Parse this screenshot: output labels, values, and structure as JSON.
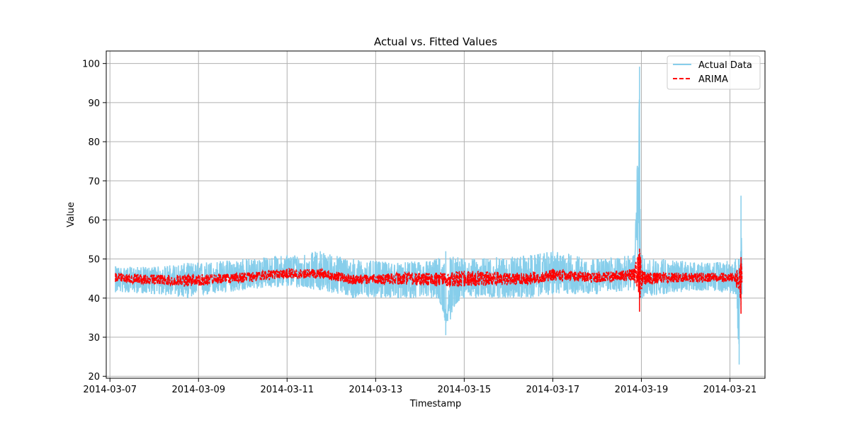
{
  "chart_data": {
    "type": "line",
    "title": "Actual vs. Fitted Values",
    "xlabel": "Timestamp",
    "ylabel": "Value",
    "xlim": [
      "2014-03-06T22:00",
      "2014-03-21T19:00"
    ],
    "ylim": [
      19.5,
      103.2
    ],
    "grid": true,
    "legend_position": "top-right",
    "x_ticks": [
      "2014-03-07",
      "2014-03-09",
      "2014-03-11",
      "2014-03-13",
      "2014-03-15",
      "2014-03-17",
      "2014-03-19",
      "2014-03-21"
    ],
    "y_ticks": [
      20,
      30,
      40,
      50,
      60,
      70,
      80,
      90,
      100
    ],
    "series": [
      {
        "name": "Actual Data",
        "color": "#87CEEB",
        "style": "solid",
        "x": [
          "2014-03-07T03:00",
          "2014-03-08T00:00",
          "2014-03-08T18:00",
          "2014-03-10T00:00",
          "2014-03-11T00:00",
          "2014-03-11T18:00",
          "2014-03-12T12:00",
          "2014-03-13T12:00",
          "2014-03-14T09:00",
          "2014-03-14T14:00",
          "2014-03-15T00:00",
          "2014-03-16T12:00",
          "2014-03-17T00:00",
          "2014-03-18T00:00",
          "2014-03-18T20:00",
          "2014-03-18T23:00",
          "2014-03-18T23:30",
          "2014-03-19T00:30",
          "2014-03-19T12:00",
          "2014-03-20T12:00",
          "2014-03-21T03:00",
          "2014-03-21T05:00",
          "2014-03-21T06:00",
          "2014-03-21T06:30"
        ],
        "values": [
          45,
          44.5,
          44,
          45.5,
          46.5,
          46,
          44.5,
          45,
          44.5,
          30.5,
          45,
          44.5,
          46,
          45,
          46,
          99.2,
          45,
          44,
          45,
          45,
          44,
          23,
          66.2,
          45
        ],
        "band_low": [
          41.5,
          41,
          40,
          42,
          43,
          42,
          40,
          40,
          40,
          37,
          40,
          40,
          41,
          41,
          42,
          40,
          40,
          40,
          41,
          42,
          41,
          41,
          41,
          41
        ],
        "band_high": [
          48,
          48,
          49,
          50,
          51,
          52,
          50,
          49,
          50,
          52,
          50,
          51,
          52,
          50,
          51,
          51,
          51,
          51,
          50,
          49,
          50,
          50,
          50,
          50
        ]
      },
      {
        "name": "ARIMA",
        "color": "#FF0000",
        "style": "dashed",
        "x": [
          "2014-03-07T03:00",
          "2014-03-08T00:00",
          "2014-03-08T18:00",
          "2014-03-10T00:00",
          "2014-03-11T00:00",
          "2014-03-11T18:00",
          "2014-03-12T12:00",
          "2014-03-13T12:00",
          "2014-03-14T09:00",
          "2014-03-15T00:00",
          "2014-03-16T12:00",
          "2014-03-17T00:00",
          "2014-03-18T00:00",
          "2014-03-18T20:00",
          "2014-03-18T23:00",
          "2014-03-19T00:30",
          "2014-03-19T12:00",
          "2014-03-20T12:00",
          "2014-03-21T03:00",
          "2014-03-21T06:00",
          "2014-03-21T06:30"
        ],
        "values": [
          45.2,
          44.8,
          44.5,
          45.3,
          46.3,
          46.2,
          44.8,
          44.9,
          44.6,
          44.9,
          44.7,
          45.9,
          45.2,
          45.8,
          45,
          45,
          45.2,
          45.1,
          45.2,
          45,
          45
        ],
        "band_low": [
          44,
          43.5,
          43,
          44,
          45,
          45,
          43.5,
          43.5,
          43,
          43,
          43.5,
          44.5,
          44,
          44.5,
          36.5,
          43.5,
          44,
          44,
          44,
          36,
          44
        ],
        "band_high": [
          46.5,
          46,
          46,
          46.5,
          47.5,
          47.5,
          46,
          46.5,
          46.5,
          47,
          46.5,
          47.5,
          46.5,
          47.5,
          52.8,
          47,
          46.5,
          46.5,
          46.5,
          50.5,
          46.5
        ]
      }
    ]
  }
}
